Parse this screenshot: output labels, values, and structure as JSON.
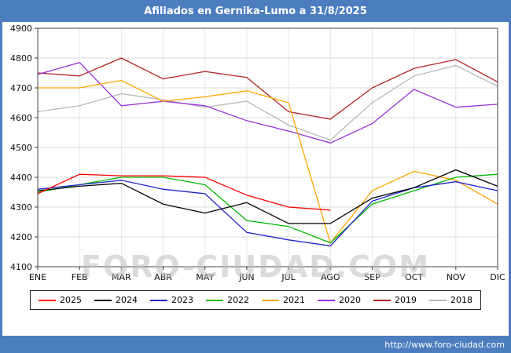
{
  "header": {
    "title": "Afiliados en Gernika-Lumo a 31/8/2025"
  },
  "footer": {
    "url": "http://www.foro-ciudad.com"
  },
  "watermark": "FORO-CIUDAD.COM",
  "colors": {
    "frame_blue": "#4c7dbf",
    "plot_bg": "#ffffff",
    "grid": "#d9d9d9"
  },
  "chart_data": {
    "type": "line",
    "title": "Afiliados en Gernika-Lumo a 31/8/2025",
    "categories": [
      "ENE",
      "FEB",
      "MAR",
      "ABR",
      "MAY",
      "JUN",
      "JUL",
      "AGO",
      "SEP",
      "OCT",
      "NOV",
      "DIC"
    ],
    "xlabel": "",
    "ylabel": "",
    "ylim": [
      4100,
      4900
    ],
    "ytick_step": 100,
    "grid": true,
    "legend_position": "bottom",
    "series": [
      {
        "name": "2025",
        "color": "#ff0000",
        "values": [
          4345,
          4410,
          4405,
          4405,
          4400,
          4340,
          4300,
          4290
        ]
      },
      {
        "name": "2024",
        "color": "#000000",
        "values": [
          4355,
          4370,
          4380,
          4310,
          4280,
          4315,
          4245,
          4245,
          4330,
          4365,
          4425,
          4370
        ]
      },
      {
        "name": "2023",
        "color": "#2222cc",
        "values": [
          4360,
          4375,
          4390,
          4360,
          4345,
          4215,
          4190,
          4170,
          4320,
          4365,
          4385,
          4355
        ]
      },
      {
        "name": "2022",
        "color": "#00b800",
        "values": [
          4350,
          4375,
          4400,
          4400,
          4375,
          4255,
          4235,
          4180,
          4310,
          4355,
          4400,
          4410
        ]
      },
      {
        "name": "2021",
        "color": "#ffa600",
        "values": [
          4700,
          4700,
          4725,
          4655,
          4670,
          4690,
          4650,
          4180,
          4355,
          4420,
          4390,
          4310
        ]
      },
      {
        "name": "2020",
        "color": "#9b30d9",
        "values": [
          4745,
          4785,
          4640,
          4655,
          4640,
          4590,
          4555,
          4515,
          4580,
          4695,
          4635,
          4645
        ]
      },
      {
        "name": "2019",
        "color": "#b22222",
        "values": [
          4750,
          4740,
          4800,
          4730,
          4755,
          4735,
          4620,
          4595,
          4700,
          4765,
          4795,
          4720
        ]
      },
      {
        "name": "2018",
        "color": "#b8b8b8",
        "values": [
          4620,
          4640,
          4680,
          4660,
          4635,
          4655,
          4575,
          4525,
          4650,
          4740,
          4775,
          4705
        ]
      }
    ]
  }
}
